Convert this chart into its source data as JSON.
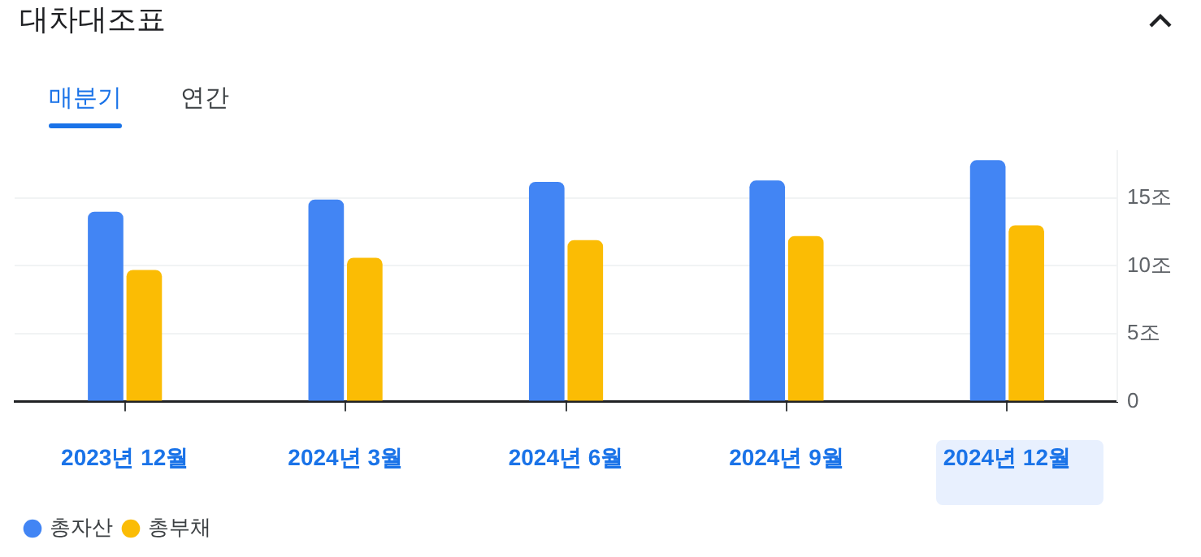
{
  "chart_data": {
    "type": "bar",
    "title": "대차대조표",
    "annotations": [
      "매분기",
      "연간"
    ],
    "categories": [
      "2023년 12월",
      "2024년 3월",
      "2024년 6월",
      "2024년 9월",
      "2024년 12월"
    ],
    "series": [
      {
        "name": "총자산",
        "color": "#4285f4",
        "values": [
          14.0,
          14.9,
          16.2,
          16.3,
          17.8
        ]
      },
      {
        "name": "총부채",
        "color": "#fbbc04",
        "values": [
          9.7,
          10.6,
          11.9,
          12.2,
          13.0
        ]
      }
    ],
    "ylim": [
      0,
      18.5
    ],
    "yticks": [
      0,
      {
        "value": 5,
        "label": "5조"
      },
      {
        "value": 10,
        "label": "10조"
      },
      {
        "value": 15,
        "label": "15조"
      }
    ],
    "grid": "y",
    "legend": "bottom left"
  }
}
